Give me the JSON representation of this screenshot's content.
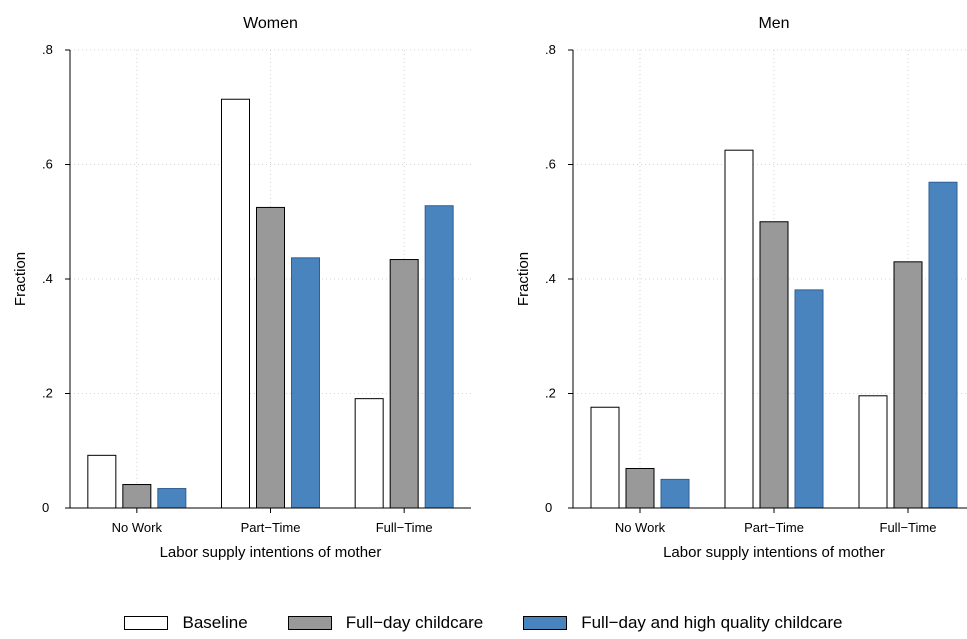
{
  "chart_data": [
    {
      "type": "bar",
      "title": "Women",
      "xlabel": "Labor supply intentions of mother",
      "ylabel": "Fraction",
      "categories": [
        "No Work",
        "Part−Time",
        "Full−Time"
      ],
      "ylim": [
        0,
        0.8
      ],
      "yticks": [
        0,
        0.2,
        0.4,
        0.6,
        0.8
      ],
      "ytick_labels": [
        "0",
        ".2",
        ".4",
        ".6",
        ".8"
      ],
      "grid": true,
      "series": [
        {
          "name": "Baseline",
          "color": "#ffffff",
          "values": [
            0.092,
            0.714,
            0.191
          ]
        },
        {
          "name": "Full−day childcare",
          "color": "#999999",
          "values": [
            0.041,
            0.525,
            0.434
          ]
        },
        {
          "name": "Full−day and high quality childcare",
          "color": "#4a84bf",
          "values": [
            0.034,
            0.437,
            0.528
          ]
        }
      ]
    },
    {
      "type": "bar",
      "title": "Men",
      "xlabel": "Labor supply intentions of mother",
      "ylabel": "Fraction",
      "categories": [
        "No Work",
        "Part−Time",
        "Full−Time"
      ],
      "ylim": [
        0,
        0.8
      ],
      "yticks": [
        0,
        0.2,
        0.4,
        0.6,
        0.8
      ],
      "ytick_labels": [
        "0",
        ".2",
        ".4",
        ".6",
        ".8"
      ],
      "grid": true,
      "series": [
        {
          "name": "Baseline",
          "color": "#ffffff",
          "values": [
            0.176,
            0.625,
            0.196
          ]
        },
        {
          "name": "Full−day childcare",
          "color": "#999999",
          "values": [
            0.069,
            0.5,
            0.43
          ]
        },
        {
          "name": "Full−day and high quality childcare",
          "color": "#4a84bf",
          "values": [
            0.05,
            0.381,
            0.569
          ]
        }
      ]
    }
  ],
  "legend": {
    "placement": "bottom",
    "items": [
      {
        "label": "Baseline",
        "color": "#ffffff"
      },
      {
        "label": "Full−day childcare",
        "color": "#999999"
      },
      {
        "label": "Full−day and high quality childcare",
        "color": "#4a84bf"
      }
    ]
  }
}
